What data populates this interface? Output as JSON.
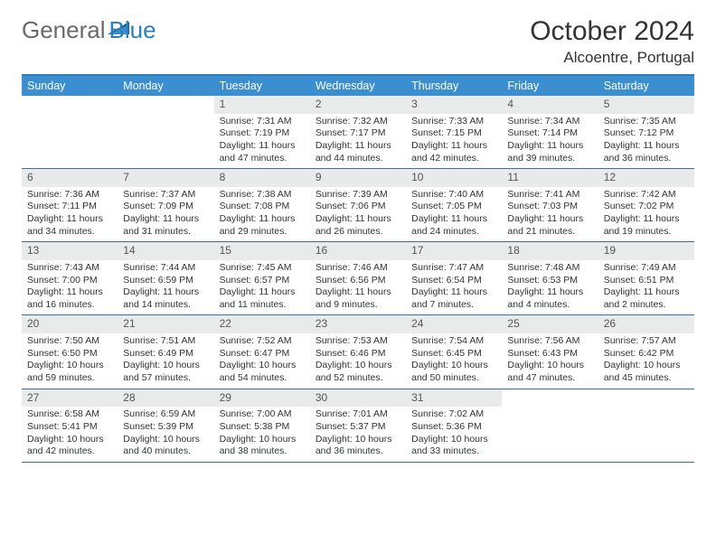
{
  "brand": {
    "general": "General",
    "blue": "Blue"
  },
  "title": {
    "month": "October 2024",
    "location": "Alcoentre, Portugal"
  },
  "colors": {
    "header_bar": "#3b8fd0",
    "header_text": "#ffffff",
    "top_border": "#2a7fba",
    "week_divider": "#3b6f9e",
    "daynum_bg": "#e9eaea",
    "daynum_text": "#555555",
    "body_text": "#333333",
    "logo_gray": "#6a6a6a",
    "logo_blue": "#2a7fba",
    "logo_triangle": "#1b5f93"
  },
  "dayNames": [
    "Sunday",
    "Monday",
    "Tuesday",
    "Wednesday",
    "Thursday",
    "Friday",
    "Saturday"
  ],
  "weeks": [
    [
      {
        "empty": true
      },
      {
        "empty": true
      },
      {
        "n": "1",
        "sunrise": "Sunrise: 7:31 AM",
        "sunset": "Sunset: 7:19 PM",
        "dl1": "Daylight: 11 hours",
        "dl2": "and 47 minutes."
      },
      {
        "n": "2",
        "sunrise": "Sunrise: 7:32 AM",
        "sunset": "Sunset: 7:17 PM",
        "dl1": "Daylight: 11 hours",
        "dl2": "and 44 minutes."
      },
      {
        "n": "3",
        "sunrise": "Sunrise: 7:33 AM",
        "sunset": "Sunset: 7:15 PM",
        "dl1": "Daylight: 11 hours",
        "dl2": "and 42 minutes."
      },
      {
        "n": "4",
        "sunrise": "Sunrise: 7:34 AM",
        "sunset": "Sunset: 7:14 PM",
        "dl1": "Daylight: 11 hours",
        "dl2": "and 39 minutes."
      },
      {
        "n": "5",
        "sunrise": "Sunrise: 7:35 AM",
        "sunset": "Sunset: 7:12 PM",
        "dl1": "Daylight: 11 hours",
        "dl2": "and 36 minutes."
      }
    ],
    [
      {
        "n": "6",
        "sunrise": "Sunrise: 7:36 AM",
        "sunset": "Sunset: 7:11 PM",
        "dl1": "Daylight: 11 hours",
        "dl2": "and 34 minutes."
      },
      {
        "n": "7",
        "sunrise": "Sunrise: 7:37 AM",
        "sunset": "Sunset: 7:09 PM",
        "dl1": "Daylight: 11 hours",
        "dl2": "and 31 minutes."
      },
      {
        "n": "8",
        "sunrise": "Sunrise: 7:38 AM",
        "sunset": "Sunset: 7:08 PM",
        "dl1": "Daylight: 11 hours",
        "dl2": "and 29 minutes."
      },
      {
        "n": "9",
        "sunrise": "Sunrise: 7:39 AM",
        "sunset": "Sunset: 7:06 PM",
        "dl1": "Daylight: 11 hours",
        "dl2": "and 26 minutes."
      },
      {
        "n": "10",
        "sunrise": "Sunrise: 7:40 AM",
        "sunset": "Sunset: 7:05 PM",
        "dl1": "Daylight: 11 hours",
        "dl2": "and 24 minutes."
      },
      {
        "n": "11",
        "sunrise": "Sunrise: 7:41 AM",
        "sunset": "Sunset: 7:03 PM",
        "dl1": "Daylight: 11 hours",
        "dl2": "and 21 minutes."
      },
      {
        "n": "12",
        "sunrise": "Sunrise: 7:42 AM",
        "sunset": "Sunset: 7:02 PM",
        "dl1": "Daylight: 11 hours",
        "dl2": "and 19 minutes."
      }
    ],
    [
      {
        "n": "13",
        "sunrise": "Sunrise: 7:43 AM",
        "sunset": "Sunset: 7:00 PM",
        "dl1": "Daylight: 11 hours",
        "dl2": "and 16 minutes."
      },
      {
        "n": "14",
        "sunrise": "Sunrise: 7:44 AM",
        "sunset": "Sunset: 6:59 PM",
        "dl1": "Daylight: 11 hours",
        "dl2": "and 14 minutes."
      },
      {
        "n": "15",
        "sunrise": "Sunrise: 7:45 AM",
        "sunset": "Sunset: 6:57 PM",
        "dl1": "Daylight: 11 hours",
        "dl2": "and 11 minutes."
      },
      {
        "n": "16",
        "sunrise": "Sunrise: 7:46 AM",
        "sunset": "Sunset: 6:56 PM",
        "dl1": "Daylight: 11 hours",
        "dl2": "and 9 minutes."
      },
      {
        "n": "17",
        "sunrise": "Sunrise: 7:47 AM",
        "sunset": "Sunset: 6:54 PM",
        "dl1": "Daylight: 11 hours",
        "dl2": "and 7 minutes."
      },
      {
        "n": "18",
        "sunrise": "Sunrise: 7:48 AM",
        "sunset": "Sunset: 6:53 PM",
        "dl1": "Daylight: 11 hours",
        "dl2": "and 4 minutes."
      },
      {
        "n": "19",
        "sunrise": "Sunrise: 7:49 AM",
        "sunset": "Sunset: 6:51 PM",
        "dl1": "Daylight: 11 hours",
        "dl2": "and 2 minutes."
      }
    ],
    [
      {
        "n": "20",
        "sunrise": "Sunrise: 7:50 AM",
        "sunset": "Sunset: 6:50 PM",
        "dl1": "Daylight: 10 hours",
        "dl2": "and 59 minutes."
      },
      {
        "n": "21",
        "sunrise": "Sunrise: 7:51 AM",
        "sunset": "Sunset: 6:49 PM",
        "dl1": "Daylight: 10 hours",
        "dl2": "and 57 minutes."
      },
      {
        "n": "22",
        "sunrise": "Sunrise: 7:52 AM",
        "sunset": "Sunset: 6:47 PM",
        "dl1": "Daylight: 10 hours",
        "dl2": "and 54 minutes."
      },
      {
        "n": "23",
        "sunrise": "Sunrise: 7:53 AM",
        "sunset": "Sunset: 6:46 PM",
        "dl1": "Daylight: 10 hours",
        "dl2": "and 52 minutes."
      },
      {
        "n": "24",
        "sunrise": "Sunrise: 7:54 AM",
        "sunset": "Sunset: 6:45 PM",
        "dl1": "Daylight: 10 hours",
        "dl2": "and 50 minutes."
      },
      {
        "n": "25",
        "sunrise": "Sunrise: 7:56 AM",
        "sunset": "Sunset: 6:43 PM",
        "dl1": "Daylight: 10 hours",
        "dl2": "and 47 minutes."
      },
      {
        "n": "26",
        "sunrise": "Sunrise: 7:57 AM",
        "sunset": "Sunset: 6:42 PM",
        "dl1": "Daylight: 10 hours",
        "dl2": "and 45 minutes."
      }
    ],
    [
      {
        "n": "27",
        "sunrise": "Sunrise: 6:58 AM",
        "sunset": "Sunset: 5:41 PM",
        "dl1": "Daylight: 10 hours",
        "dl2": "and 42 minutes."
      },
      {
        "n": "28",
        "sunrise": "Sunrise: 6:59 AM",
        "sunset": "Sunset: 5:39 PM",
        "dl1": "Daylight: 10 hours",
        "dl2": "and 40 minutes."
      },
      {
        "n": "29",
        "sunrise": "Sunrise: 7:00 AM",
        "sunset": "Sunset: 5:38 PM",
        "dl1": "Daylight: 10 hours",
        "dl2": "and 38 minutes."
      },
      {
        "n": "30",
        "sunrise": "Sunrise: 7:01 AM",
        "sunset": "Sunset: 5:37 PM",
        "dl1": "Daylight: 10 hours",
        "dl2": "and 36 minutes."
      },
      {
        "n": "31",
        "sunrise": "Sunrise: 7:02 AM",
        "sunset": "Sunset: 5:36 PM",
        "dl1": "Daylight: 10 hours",
        "dl2": "and 33 minutes."
      },
      {
        "empty": true
      },
      {
        "empty": true
      }
    ]
  ]
}
